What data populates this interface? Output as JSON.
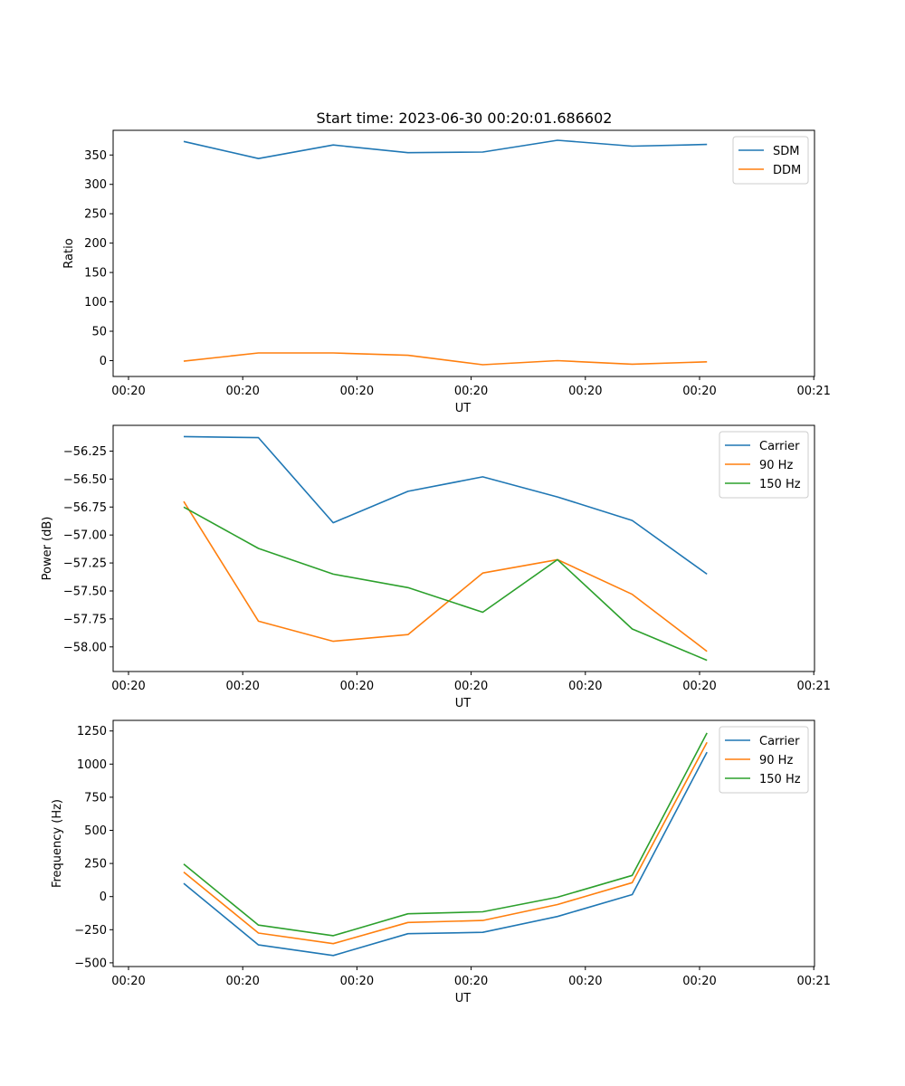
{
  "title": "Start time: 2023-06-30 00:20:01.686602",
  "x_tick_labels": [
    "00:20",
    "00:20",
    "00:20",
    "00:20",
    "00:20",
    "00:20",
    "00:21"
  ],
  "colors": {
    "blue": "#1f77b4",
    "orange": "#ff7f0e",
    "green": "#2ca02c"
  },
  "chart_data": [
    {
      "type": "line",
      "title": "Start time: 2023-06-30 00:20:01.686602",
      "xlabel": "UT",
      "ylabel": "Ratio",
      "x": [
        1,
        2,
        3,
        4,
        5,
        6,
        7,
        8
      ],
      "xlim": [
        0.8,
        9.35
      ],
      "ylim": [
        -27,
        392
      ],
      "yticks": [
        0,
        50,
        100,
        150,
        200,
        250,
        300,
        350
      ],
      "ytick_labels": [
        "0",
        "50",
        "100",
        "150",
        "200",
        "250",
        "300",
        "350"
      ],
      "legend": "top-right",
      "grid": false,
      "series": [
        {
          "name": "SDM",
          "color": "#1f77b4",
          "values": [
            373,
            344,
            367,
            354,
            355,
            375,
            365,
            368
          ]
        },
        {
          "name": "DDM",
          "color": "#ff7f0e",
          "values": [
            -1,
            13,
            13,
            9,
            -7,
            0,
            -6,
            -2
          ]
        }
      ]
    },
    {
      "type": "line",
      "xlabel": "UT",
      "ylabel": "Power (dB)",
      "x": [
        1,
        2,
        3,
        4,
        5,
        6,
        7,
        8
      ],
      "xlim": [
        0.8,
        9.35
      ],
      "ylim": [
        -58.22,
        -56.02
      ],
      "yticks": [
        -58.0,
        -57.75,
        -57.5,
        -57.25,
        -57.0,
        -56.75,
        -56.5,
        -56.25
      ],
      "ytick_labels": [
        "−58.00",
        "−57.75",
        "−57.50",
        "−57.25",
        "−57.00",
        "−56.75",
        "−56.50",
        "−56.25"
      ],
      "legend": "top-right",
      "grid": false,
      "series": [
        {
          "name": "Carrier",
          "color": "#1f77b4",
          "values": [
            -56.12,
            -56.13,
            -56.89,
            -56.61,
            -56.48,
            -56.66,
            -56.87,
            -57.35
          ]
        },
        {
          "name": "90 Hz",
          "color": "#ff7f0e",
          "values": [
            -56.7,
            -57.77,
            -57.95,
            -57.89,
            -57.34,
            -57.22,
            -57.53,
            -58.04
          ]
        },
        {
          "name": "150 Hz",
          "color": "#2ca02c",
          "values": [
            -56.75,
            -57.12,
            -57.35,
            -57.47,
            -57.69,
            -57.22,
            -57.84,
            -58.12
          ]
        }
      ]
    },
    {
      "type": "line",
      "xlabel": "UT",
      "ylabel": "Frequency (Hz)",
      "x": [
        1,
        2,
        3,
        4,
        5,
        6,
        7,
        8
      ],
      "xlim": [
        0.8,
        9.35
      ],
      "ylim": [
        -528,
        1330
      ],
      "yticks": [
        -500,
        -250,
        0,
        250,
        500,
        750,
        1000,
        1250
      ],
      "ytick_labels": [
        "−500",
        "−250",
        "0",
        "250",
        "500",
        "750",
        "1000",
        "1250"
      ],
      "legend": "top-right",
      "grid": false,
      "series": [
        {
          "name": "Carrier",
          "color": "#1f77b4",
          "values": [
            100,
            -365,
            -445,
            -280,
            -270,
            -150,
            15,
            1090
          ]
        },
        {
          "name": "90 Hz",
          "color": "#ff7f0e",
          "values": [
            185,
            -275,
            -355,
            -195,
            -180,
            -60,
            105,
            1165
          ]
        },
        {
          "name": "150 Hz",
          "color": "#2ca02c",
          "values": [
            245,
            -215,
            -295,
            -130,
            -115,
            -5,
            160,
            1235
          ]
        }
      ]
    }
  ]
}
